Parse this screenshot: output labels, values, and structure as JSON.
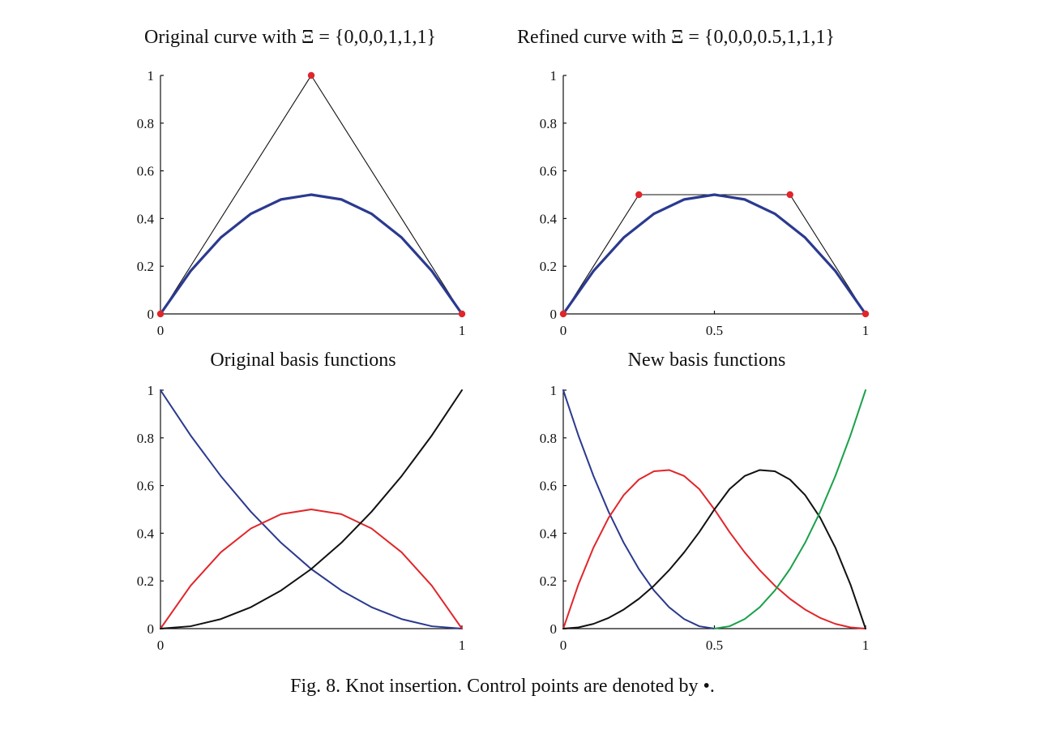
{
  "caption": "Fig. 8.  Knot insertion. Control points are denoted by •.",
  "chart_data": [
    {
      "id": "top-left",
      "type": "line",
      "title": "Original curve with Ξ = {0,0,0,1,1,1}",
      "xlim": [
        0,
        1
      ],
      "ylim": [
        0,
        1
      ],
      "xticks": [
        0,
        1
      ],
      "yticks": [
        0,
        0.2,
        0.4,
        0.6,
        0.8,
        1
      ],
      "tick_labels_x": [
        "0",
        "1"
      ],
      "tick_labels_y": [
        "0",
        "0.2",
        "0.4",
        "0.6",
        "0.8",
        "1"
      ],
      "series": [
        {
          "kind": "control-polygon",
          "color": "#111111",
          "x": [
            0,
            0.5,
            1
          ],
          "y": [
            0,
            1,
            0
          ]
        },
        {
          "kind": "curve",
          "color": "#2b3a8f",
          "x": [
            0,
            0.1,
            0.2,
            0.3,
            0.4,
            0.5,
            0.6,
            0.7,
            0.8,
            0.9,
            1
          ],
          "y": [
            0,
            0.18,
            0.32,
            0.42,
            0.48,
            0.5,
            0.48,
            0.42,
            0.32,
            0.18,
            0
          ]
        },
        {
          "kind": "control-points",
          "color": "#e0262b",
          "x": [
            0,
            0.5,
            1
          ],
          "y": [
            0,
            1,
            0
          ]
        }
      ]
    },
    {
      "id": "top-right",
      "type": "line",
      "title": "Refined curve with Ξ = {0,0,0,0.5,1,1,1}",
      "xlim": [
        0,
        1
      ],
      "ylim": [
        0,
        1
      ],
      "xticks": [
        0,
        0.5,
        1
      ],
      "yticks": [
        0,
        0.2,
        0.4,
        0.6,
        0.8,
        1
      ],
      "tick_labels_x": [
        "0",
        "0.5",
        "1"
      ],
      "tick_labels_y": [
        "0",
        "0.2",
        "0.4",
        "0.6",
        "0.8",
        "1"
      ],
      "series": [
        {
          "kind": "control-polygon",
          "color": "#111111",
          "x": [
            0,
            0.25,
            0.75,
            1
          ],
          "y": [
            0,
            0.5,
            0.5,
            0
          ]
        },
        {
          "kind": "curve",
          "color": "#2b3a8f",
          "x": [
            0,
            0.1,
            0.2,
            0.3,
            0.4,
            0.5,
            0.6,
            0.7,
            0.8,
            0.9,
            1
          ],
          "y": [
            0,
            0.18,
            0.32,
            0.42,
            0.48,
            0.5,
            0.48,
            0.42,
            0.32,
            0.18,
            0
          ]
        },
        {
          "kind": "control-points",
          "color": "#e0262b",
          "x": [
            0,
            0.25,
            0.75,
            1
          ],
          "y": [
            0,
            0.5,
            0.5,
            0
          ]
        }
      ]
    },
    {
      "id": "bottom-left",
      "type": "line",
      "title": "Original basis functions",
      "xlim": [
        0,
        1
      ],
      "ylim": [
        0,
        1
      ],
      "xticks": [
        0,
        1
      ],
      "yticks": [
        0,
        0.2,
        0.4,
        0.6,
        0.8,
        1
      ],
      "tick_labels_x": [
        "0",
        "1"
      ],
      "tick_labels_y": [
        "0",
        "0.2",
        "0.4",
        "0.6",
        "0.8",
        "1"
      ],
      "series": [
        {
          "kind": "basis",
          "color": "#2b3a8f",
          "x": [
            0,
            0.1,
            0.2,
            0.3,
            0.4,
            0.5,
            0.6,
            0.7,
            0.8,
            0.9,
            1
          ],
          "y": [
            1,
            0.81,
            0.64,
            0.49,
            0.36,
            0.25,
            0.16,
            0.09,
            0.04,
            0.01,
            0
          ]
        },
        {
          "kind": "basis",
          "color": "#e0262b",
          "x": [
            0,
            0.1,
            0.2,
            0.3,
            0.4,
            0.5,
            0.6,
            0.7,
            0.8,
            0.9,
            1
          ],
          "y": [
            0,
            0.18,
            0.32,
            0.42,
            0.48,
            0.5,
            0.48,
            0.42,
            0.32,
            0.18,
            0
          ]
        },
        {
          "kind": "basis",
          "color": "#111111",
          "x": [
            0,
            0.1,
            0.2,
            0.3,
            0.4,
            0.5,
            0.6,
            0.7,
            0.8,
            0.9,
            1
          ],
          "y": [
            0,
            0.01,
            0.04,
            0.09,
            0.16,
            0.25,
            0.36,
            0.49,
            0.64,
            0.81,
            1
          ]
        }
      ]
    },
    {
      "id": "bottom-right",
      "type": "line",
      "title": "New basis functions",
      "xlim": [
        0,
        1
      ],
      "ylim": [
        0,
        1
      ],
      "xticks": [
        0,
        0.5,
        1
      ],
      "yticks": [
        0,
        0.2,
        0.4,
        0.6,
        0.8,
        1
      ],
      "tick_labels_x": [
        "0",
        "0.5",
        "1"
      ],
      "tick_labels_y": [
        "0",
        "0.2",
        "0.4",
        "0.6",
        "0.8",
        "1"
      ],
      "series": [
        {
          "kind": "basis",
          "color": "#2b3a8f",
          "x": [
            0,
            0.05,
            0.1,
            0.15,
            0.2,
            0.25,
            0.3,
            0.35,
            0.4,
            0.45,
            0.5
          ],
          "y": [
            1,
            0.81,
            0.64,
            0.49,
            0.36,
            0.25,
            0.16,
            0.09,
            0.04,
            0.01,
            0
          ]
        },
        {
          "kind": "basis",
          "color": "#e0262b",
          "x": [
            0,
            0.05,
            0.1,
            0.15,
            0.2,
            0.25,
            0.3,
            0.35,
            0.4,
            0.45,
            0.5,
            0.55,
            0.6,
            0.65,
            0.7,
            0.75,
            0.8,
            0.85,
            0.9,
            0.95,
            1
          ],
          "y": [
            0,
            0.185,
            0.34,
            0.465,
            0.56,
            0.625,
            0.66,
            0.665,
            0.64,
            0.585,
            0.5,
            0.405,
            0.32,
            0.245,
            0.18,
            0.125,
            0.08,
            0.045,
            0.02,
            0.005,
            0
          ]
        },
        {
          "kind": "basis",
          "color": "#111111",
          "x": [
            0,
            0.05,
            0.1,
            0.15,
            0.2,
            0.25,
            0.3,
            0.35,
            0.4,
            0.45,
            0.5,
            0.55,
            0.6,
            0.65,
            0.7,
            0.75,
            0.8,
            0.85,
            0.9,
            0.95,
            1
          ],
          "y": [
            0,
            0.005,
            0.02,
            0.045,
            0.08,
            0.125,
            0.18,
            0.245,
            0.32,
            0.405,
            0.5,
            0.585,
            0.64,
            0.665,
            0.66,
            0.625,
            0.56,
            0.465,
            0.34,
            0.185,
            0
          ]
        },
        {
          "kind": "basis",
          "color": "#1aa14a",
          "x": [
            0.5,
            0.55,
            0.6,
            0.65,
            0.7,
            0.75,
            0.8,
            0.85,
            0.9,
            0.95,
            1
          ],
          "y": [
            0,
            0.01,
            0.04,
            0.09,
            0.16,
            0.25,
            0.36,
            0.49,
            0.64,
            0.81,
            1
          ]
        }
      ]
    }
  ]
}
